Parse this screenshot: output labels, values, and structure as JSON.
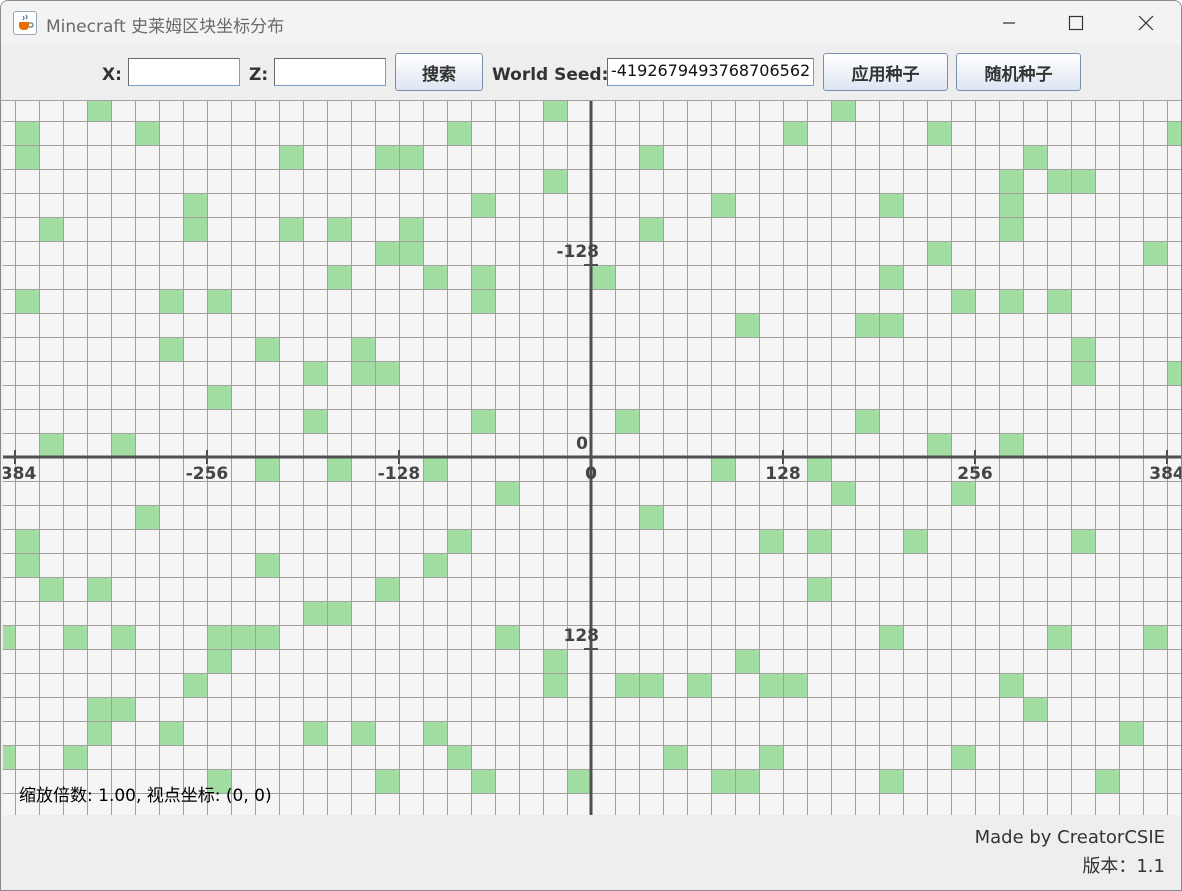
{
  "window": {
    "title": "Minecraft 史莱姆区块坐标分布",
    "app_icon": "java-cup-icon"
  },
  "toolbar": {
    "x_label": "X:",
    "x_value": "",
    "z_label": "Z:",
    "z_value": "",
    "search_label": "搜索",
    "seed_label": "World Seed:",
    "seed_value": "-4192679493768706562",
    "apply_seed_label": "应用种子",
    "random_seed_label": "随机种子"
  },
  "map": {
    "axis_labels_x": [
      "-384",
      "-256",
      "-128",
      "0",
      "128",
      "256",
      "384"
    ],
    "axis_labels_z": [
      "-128",
      "0",
      "128"
    ],
    "chunk_color": "#a2dda2",
    "grid_color": "#a0a0a0",
    "axis_color": "#505050",
    "slime_chunks": [
      [
        -21,
        -15
      ],
      [
        -2,
        -15
      ],
      [
        10,
        -15
      ],
      [
        -24,
        -14
      ],
      [
        -19,
        -14
      ],
      [
        -6,
        -14
      ],
      [
        8,
        -14
      ],
      [
        14,
        -14
      ],
      [
        24,
        -14
      ],
      [
        -24,
        -13
      ],
      [
        -13,
        -13
      ],
      [
        -9,
        -13
      ],
      [
        -8,
        -13
      ],
      [
        2,
        -13
      ],
      [
        18,
        -13
      ],
      [
        -2,
        -12
      ],
      [
        17,
        -12
      ],
      [
        19,
        -12
      ],
      [
        20,
        -12
      ],
      [
        -17,
        -11
      ],
      [
        -5,
        -11
      ],
      [
        5,
        -11
      ],
      [
        12,
        -11
      ],
      [
        17,
        -11
      ],
      [
        -23,
        -10
      ],
      [
        -17,
        -10
      ],
      [
        -13,
        -10
      ],
      [
        -11,
        -10
      ],
      [
        -8,
        -10
      ],
      [
        2,
        -10
      ],
      [
        17,
        -10
      ],
      [
        -9,
        -9
      ],
      [
        -8,
        -9
      ],
      [
        14,
        -9
      ],
      [
        23,
        -9
      ],
      [
        -11,
        -8
      ],
      [
        -7,
        -8
      ],
      [
        -5,
        -8
      ],
      [
        0,
        -8
      ],
      [
        12,
        -8
      ],
      [
        -24,
        -7
      ],
      [
        -18,
        -7
      ],
      [
        -16,
        -7
      ],
      [
        -5,
        -7
      ],
      [
        15,
        -7
      ],
      [
        17,
        -7
      ],
      [
        19,
        -7
      ],
      [
        6,
        -6
      ],
      [
        11,
        -6
      ],
      [
        12,
        -6
      ],
      [
        -18,
        -5
      ],
      [
        -14,
        -5
      ],
      [
        -10,
        -5
      ],
      [
        20,
        -5
      ],
      [
        -12,
        -4
      ],
      [
        -10,
        -4
      ],
      [
        -9,
        -4
      ],
      [
        20,
        -4
      ],
      [
        24,
        -4
      ],
      [
        -16,
        -3
      ],
      [
        -12,
        -2
      ],
      [
        -5,
        -2
      ],
      [
        1,
        -2
      ],
      [
        11,
        -2
      ],
      [
        -23,
        -1
      ],
      [
        -20,
        -1
      ],
      [
        14,
        -1
      ],
      [
        17,
        -1
      ],
      [
        -14,
        0
      ],
      [
        -11,
        0
      ],
      [
        -7,
        0
      ],
      [
        5,
        0
      ],
      [
        9,
        0
      ],
      [
        -4,
        1
      ],
      [
        10,
        1
      ],
      [
        15,
        1
      ],
      [
        -19,
        2
      ],
      [
        2,
        2
      ],
      [
        -24,
        3
      ],
      [
        -6,
        3
      ],
      [
        7,
        3
      ],
      [
        9,
        3
      ],
      [
        13,
        3
      ],
      [
        20,
        3
      ],
      [
        -24,
        4
      ],
      [
        -14,
        4
      ],
      [
        -7,
        4
      ],
      [
        -23,
        5
      ],
      [
        -21,
        5
      ],
      [
        -9,
        5
      ],
      [
        9,
        5
      ],
      [
        -12,
        6
      ],
      [
        -11,
        6
      ],
      [
        -25,
        7
      ],
      [
        -22,
        7
      ],
      [
        -20,
        7
      ],
      [
        -16,
        7
      ],
      [
        -15,
        7
      ],
      [
        -14,
        7
      ],
      [
        -4,
        7
      ],
      [
        12,
        7
      ],
      [
        19,
        7
      ],
      [
        23,
        7
      ],
      [
        -16,
        8
      ],
      [
        -2,
        8
      ],
      [
        6,
        8
      ],
      [
        -17,
        9
      ],
      [
        -2,
        9
      ],
      [
        1,
        9
      ],
      [
        2,
        9
      ],
      [
        4,
        9
      ],
      [
        7,
        9
      ],
      [
        8,
        9
      ],
      [
        17,
        9
      ],
      [
        -21,
        10
      ],
      [
        -20,
        10
      ],
      [
        18,
        10
      ],
      [
        -21,
        11
      ],
      [
        -18,
        11
      ],
      [
        -12,
        11
      ],
      [
        -10,
        11
      ],
      [
        -7,
        11
      ],
      [
        22,
        11
      ],
      [
        -25,
        12
      ],
      [
        -22,
        12
      ],
      [
        -6,
        12
      ],
      [
        3,
        12
      ],
      [
        7,
        12
      ],
      [
        15,
        12
      ],
      [
        -16,
        13
      ],
      [
        -9,
        13
      ],
      [
        -5,
        13
      ],
      [
        -1,
        13
      ],
      [
        5,
        13
      ],
      [
        6,
        13
      ],
      [
        12,
        13
      ],
      [
        21,
        13
      ]
    ]
  },
  "status": {
    "zoom_text": "缩放倍数: 1.00, 视点坐标: (0, 0)"
  },
  "footer": {
    "credit": "Made by CreatorCSIE",
    "version": "版本：1.1"
  }
}
